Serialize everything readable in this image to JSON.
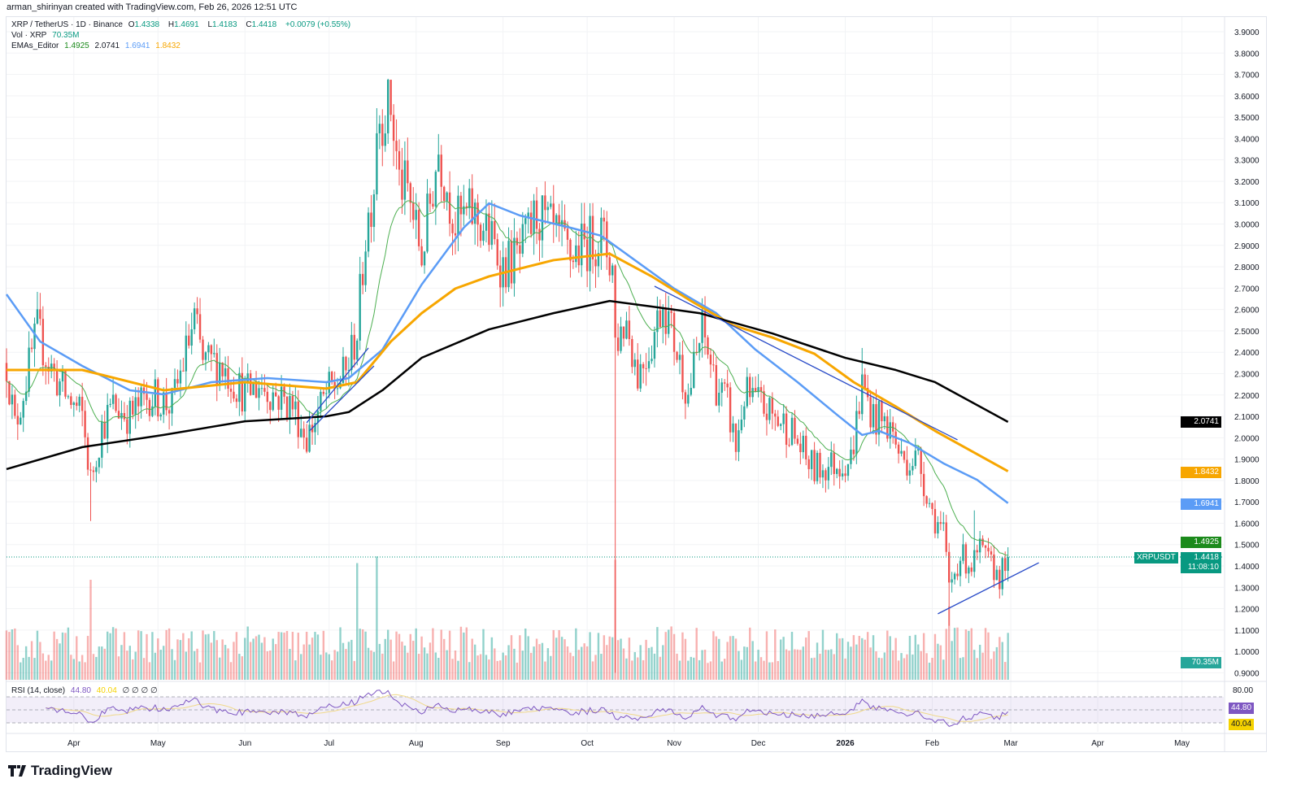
{
  "credit": "arman_shirinyan created with TradingView.com, Feb 26, 2026 12:51 UTC",
  "legend": {
    "symbol": "XRP / TetherUS · 1D · Binance",
    "open_label": "O",
    "open": "1.4338",
    "high_label": "H",
    "high": "1.4691",
    "low_label": "L",
    "low": "1.4183",
    "close_label": "C",
    "close": "1.4418",
    "change": "+0.0079 (+0.55%)",
    "vol_label": "Vol · XRP",
    "vol_value": "70.35M",
    "ema_label": "EMAs_Editor",
    "ema_values": [
      "1.4925",
      "2.0741",
      "1.6941",
      "1.8432"
    ],
    "rsi_label": "RSI (14, close)",
    "rsi_value": "44.80",
    "rsi_ma_value": "40.04",
    "rsi_extra": "∅ ∅ ∅ ∅"
  },
  "tags": {
    "ema200": "2.0741",
    "ema100": "1.8432",
    "ema50": "1.6941",
    "ema20": "1.4925",
    "symbol": "XRPUSDT",
    "price": "1.4418",
    "countdown": "11:08:10",
    "volume": "70.35M",
    "rsi_top": "80.00",
    "rsi": "44.80",
    "rsi_ma": "40.04"
  },
  "logo": "TradingView",
  "colors": {
    "up": "#26a69a",
    "down": "#ef5350",
    "ema20": "#4caf50",
    "ema50": "#5b9cf6",
    "ema100": "#f7a600",
    "ema200": "#000000",
    "trend": "#2a4cc8",
    "rsi": "#7e57c2",
    "rsi_ma": "#f0d98a"
  },
  "chart_data": {
    "type": "candlestick",
    "title": "XRP / TetherUS · 1D · Binance",
    "start_date": "2025-03-08",
    "x_unit": "days since start",
    "ylim": [
      0.9,
      3.95
    ],
    "y_ticks": [
      "0.9000",
      "1.0000",
      "1.1000",
      "1.2000",
      "1.3000",
      "1.4000",
      "1.5000",
      "1.6000",
      "1.7000",
      "1.8000",
      "1.9000",
      "2.0000",
      "2.1000",
      "2.2000",
      "2.3000",
      "2.4000",
      "2.5000",
      "2.6000",
      "2.7000",
      "2.8000",
      "2.9000",
      "3.0000",
      "3.1000",
      "3.2000",
      "3.3000",
      "3.4000",
      "3.5000",
      "3.6000",
      "3.7000",
      "3.8000",
      "3.9000"
    ],
    "x_ticks": [
      {
        "label": "Apr",
        "day": 24
      },
      {
        "label": "May",
        "day": 54
      },
      {
        "label": "Jun",
        "day": 85
      },
      {
        "label": "Jul",
        "day": 115
      },
      {
        "label": "Aug",
        "day": 146
      },
      {
        "label": "Sep",
        "day": 177
      },
      {
        "label": "Oct",
        "day": 207
      },
      {
        "label": "Nov",
        "day": 238
      },
      {
        "label": "Dec",
        "day": 268
      },
      {
        "label": "2026",
        "day": 299
      },
      {
        "label": "Feb",
        "day": 330
      },
      {
        "label": "Mar",
        "day": 358
      },
      {
        "label": "Apr",
        "day": 389
      },
      {
        "label": "May",
        "day": 419
      }
    ],
    "close_path": [
      [
        0,
        2.35
      ],
      [
        3,
        2.05
      ],
      [
        11,
        2.5
      ],
      [
        15,
        2.35
      ],
      [
        21,
        2.2
      ],
      [
        27,
        2.1
      ],
      [
        30,
        1.8
      ],
      [
        34,
        2.05
      ],
      [
        38,
        2.15
      ],
      [
        44,
        2.1
      ],
      [
        51,
        2.2
      ],
      [
        59,
        2.15
      ],
      [
        64,
        2.4
      ],
      [
        67,
        2.55
      ],
      [
        70,
        2.35
      ],
      [
        76,
        2.35
      ],
      [
        85,
        2.2
      ],
      [
        90,
        2.25
      ],
      [
        96,
        2.2
      ],
      [
        102,
        2.15
      ],
      [
        107,
        2.0
      ],
      [
        114,
        2.2
      ],
      [
        121,
        2.3
      ],
      [
        125,
        2.5
      ],
      [
        128,
        2.95
      ],
      [
        131,
        3.2
      ],
      [
        132,
        3.5
      ],
      [
        137,
        3.55
      ],
      [
        140,
        3.2
      ],
      [
        143,
        3.15
      ],
      [
        148,
        2.85
      ],
      [
        154,
        3.35
      ],
      [
        160,
        3.0
      ],
      [
        166,
        3.05
      ],
      [
        172,
        2.95
      ],
      [
        177,
        2.8
      ],
      [
        183,
        2.85
      ],
      [
        189,
        3.05
      ],
      [
        195,
        2.95
      ],
      [
        201,
        2.85
      ],
      [
        206,
        2.9
      ],
      [
        212,
        2.95
      ],
      [
        216,
        2.8
      ],
      [
        217,
        2.45
      ],
      [
        221,
        2.55
      ],
      [
        225,
        2.3
      ],
      [
        230,
        2.45
      ],
      [
        234,
        2.65
      ],
      [
        238,
        2.45
      ],
      [
        243,
        2.2
      ],
      [
        248,
        2.5
      ],
      [
        253,
        2.25
      ],
      [
        257,
        2.15
      ],
      [
        260,
        1.95
      ],
      [
        263,
        2.2
      ],
      [
        269,
        2.15
      ],
      [
        273,
        2.1
      ],
      [
        279,
        2.05
      ],
      [
        285,
        1.9
      ],
      [
        288,
        1.85
      ],
      [
        293,
        1.87
      ],
      [
        301,
        1.9
      ],
      [
        305,
        2.25
      ],
      [
        309,
        2.1
      ],
      [
        315,
        2.05
      ],
      [
        319,
        1.9
      ],
      [
        325,
        1.9
      ],
      [
        330,
        1.65
      ],
      [
        334,
        1.55
      ],
      [
        336,
        1.3
      ],
      [
        340,
        1.45
      ],
      [
        344,
        1.4
      ],
      [
        347,
        1.47
      ],
      [
        351,
        1.4
      ],
      [
        354,
        1.35
      ],
      [
        357,
        1.4418
      ]
    ],
    "wick_events": [
      {
        "day": 30,
        "low": 1.61
      },
      {
        "day": 217,
        "low": 0.9
      },
      {
        "day": 336,
        "low": 1.12
      },
      {
        "day": 137,
        "high": 3.66
      },
      {
        "day": 305,
        "high": 2.42
      },
      {
        "day": 345,
        "high": 1.66
      }
    ],
    "volume_spikes": [
      {
        "day": 30,
        "volume": 150
      },
      {
        "day": 125,
        "volume": 175
      },
      {
        "day": 132,
        "volume": 185
      },
      {
        "day": 217,
        "volume": 180
      },
      {
        "day": 336,
        "volume": 110
      },
      {
        "day": 357,
        "volume": 70.35
      }
    ],
    "ema200": [
      [
        0,
        1.853
      ],
      [
        27,
        1.956
      ],
      [
        56,
        2.013
      ],
      [
        85,
        2.077
      ],
      [
        114,
        2.1
      ],
      [
        122,
        2.12
      ],
      [
        134,
        2.222
      ],
      [
        148,
        2.374
      ],
      [
        172,
        2.507
      ],
      [
        195,
        2.583
      ],
      [
        215,
        2.64
      ],
      [
        230,
        2.614
      ],
      [
        247,
        2.583
      ],
      [
        273,
        2.488
      ],
      [
        299,
        2.374
      ],
      [
        317,
        2.317
      ],
      [
        331,
        2.26
      ],
      [
        357,
        2.0741
      ]
    ],
    "ema100": [
      [
        0,
        2.317
      ],
      [
        27,
        2.317
      ],
      [
        56,
        2.222
      ],
      [
        85,
        2.26
      ],
      [
        114,
        2.23
      ],
      [
        125,
        2.26
      ],
      [
        137,
        2.45
      ],
      [
        148,
        2.583
      ],
      [
        160,
        2.698
      ],
      [
        172,
        2.755
      ],
      [
        195,
        2.831
      ],
      [
        215,
        2.861
      ],
      [
        230,
        2.755
      ],
      [
        244,
        2.64
      ],
      [
        259,
        2.526
      ],
      [
        273,
        2.469
      ],
      [
        288,
        2.393
      ],
      [
        302,
        2.26
      ],
      [
        317,
        2.146
      ],
      [
        331,
        2.032
      ],
      [
        357,
        1.8432
      ]
    ],
    "ema50": [
      [
        0,
        2.671
      ],
      [
        12,
        2.45
      ],
      [
        27,
        2.336
      ],
      [
        44,
        2.222
      ],
      [
        56,
        2.203
      ],
      [
        73,
        2.26
      ],
      [
        93,
        2.279
      ],
      [
        114,
        2.26
      ],
      [
        122,
        2.279
      ],
      [
        134,
        2.412
      ],
      [
        148,
        2.717
      ],
      [
        163,
        2.983
      ],
      [
        172,
        3.097
      ],
      [
        183,
        3.04
      ],
      [
        201,
        2.983
      ],
      [
        212,
        2.945
      ],
      [
        224,
        2.831
      ],
      [
        238,
        2.698
      ],
      [
        253,
        2.583
      ],
      [
        267,
        2.412
      ],
      [
        282,
        2.26
      ],
      [
        296,
        2.108
      ],
      [
        305,
        2.013
      ],
      [
        311,
        2.032
      ],
      [
        322,
        1.975
      ],
      [
        334,
        1.88
      ],
      [
        346,
        1.803
      ],
      [
        357,
        1.6941
      ]
    ],
    "trendlines": [
      [
        [
          107,
          2.07
        ],
        [
          129,
          2.42
        ]
      ],
      [
        [
          108,
          2.032
        ],
        [
          131,
          2.336
        ]
      ],
      [
        [
          231,
          2.709
        ],
        [
          339,
          1.99
        ]
      ],
      [
        [
          332,
          1.176
        ],
        [
          368,
          1.415
        ]
      ]
    ],
    "current_price": 1.4418,
    "rsi": {
      "length": 14,
      "upper_band": 70,
      "lower_band": 30,
      "range": [
        0,
        100
      ]
    }
  }
}
